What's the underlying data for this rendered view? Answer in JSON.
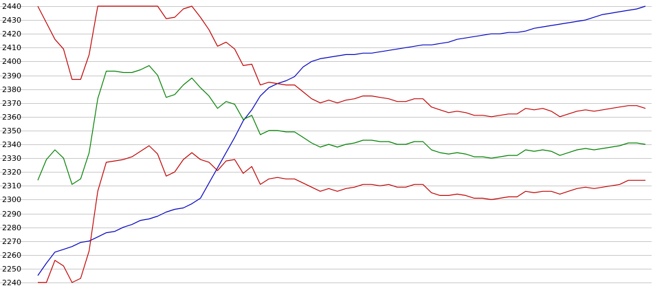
{
  "chart_data": {
    "type": "line",
    "title": "",
    "xlabel": "",
    "ylabel": "",
    "ylim": [
      2240,
      2440
    ],
    "y_ticks": [
      2240,
      2250,
      2260,
      2270,
      2280,
      2290,
      2300,
      2310,
      2320,
      2330,
      2340,
      2350,
      2360,
      2370,
      2380,
      2390,
      2400,
      2410,
      2420,
      2430,
      2440
    ],
    "grid": true,
    "x_count": 72,
    "series": [
      {
        "color": "#0000c0",
        "values": [
          2245,
          2254,
          2262,
          2264,
          2266,
          2269,
          2270,
          2273,
          2276,
          2277,
          2280,
          2282,
          2285,
          2286,
          2288,
          2291,
          2293,
          2294,
          2297,
          2301,
          2312,
          2323,
          2334,
          2345,
          2357,
          2365,
          2375,
          2381,
          2384,
          2386,
          2389,
          2396,
          2400,
          2402,
          2403,
          2404,
          2405,
          2405,
          2406,
          2406,
          2407,
          2408,
          2409,
          2410,
          2411,
          2412,
          2412,
          2413,
          2414,
          2416,
          2417,
          2418,
          2419,
          2420,
          2420,
          2421,
          2421,
          2422,
          2424,
          2425,
          2426,
          2427,
          2428,
          2429,
          2430,
          2432,
          2434,
          2435,
          2436,
          2437,
          2438,
          2440
        ]
      },
      {
        "color": "#c00000",
        "values": [
          2440,
          2428,
          2416,
          2409,
          2387,
          2387,
          2405,
          2440,
          2440,
          2440,
          2440,
          2440,
          2440,
          2440,
          2440,
          2431,
          2432,
          2438,
          2440,
          2432,
          2423,
          2411,
          2414,
          2409,
          2397,
          2398,
          2383,
          2385,
          2384,
          2383,
          2383,
          2378,
          2373,
          2370,
          2372,
          2370,
          2372,
          2373,
          2375,
          2375,
          2374,
          2373,
          2371,
          2371,
          2373,
          2373,
          2367,
          2365,
          2363,
          2364,
          2363,
          2361,
          2361,
          2360,
          2361,
          2362,
          2362,
          2366,
          2365,
          2366,
          2364,
          2360,
          2362,
          2364,
          2365,
          2364,
          2365,
          2366,
          2367,
          2368,
          2368,
          2366
        ]
      },
      {
        "color": "#008000",
        "values": [
          2314,
          2329,
          2336,
          2330,
          2311,
          2315,
          2334,
          2373,
          2393,
          2393,
          2392,
          2392,
          2394,
          2397,
          2390,
          2374,
          2376,
          2383,
          2388,
          2381,
          2375,
          2366,
          2371,
          2369,
          2358,
          2361,
          2347,
          2350,
          2350,
          2349,
          2349,
          2345,
          2341,
          2338,
          2340,
          2338,
          2340,
          2341,
          2343,
          2343,
          2342,
          2342,
          2340,
          2340,
          2342,
          2342,
          2336,
          2334,
          2333,
          2334,
          2333,
          2331,
          2331,
          2330,
          2331,
          2332,
          2332,
          2336,
          2335,
          2336,
          2335,
          2332,
          2334,
          2336,
          2337,
          2336,
          2337,
          2338,
          2339,
          2341,
          2341,
          2340
        ]
      },
      {
        "color": "#c00000",
        "values": [
          2240,
          2240,
          2256,
          2252,
          2240,
          2243,
          2263,
          2306,
          2327,
          2328,
          2329,
          2331,
          2335,
          2339,
          2333,
          2317,
          2320,
          2329,
          2334,
          2329,
          2327,
          2321,
          2328,
          2329,
          2319,
          2324,
          2311,
          2315,
          2316,
          2315,
          2315,
          2312,
          2309,
          2306,
          2308,
          2306,
          2308,
          2309,
          2311,
          2311,
          2310,
          2311,
          2309,
          2309,
          2311,
          2311,
          2305,
          2303,
          2303,
          2304,
          2303,
          2301,
          2301,
          2300,
          2301,
          2302,
          2302,
          2306,
          2305,
          2306,
          2306,
          2304,
          2306,
          2308,
          2309,
          2308,
          2309,
          2310,
          2311,
          2314,
          2314,
          2314
        ]
      }
    ]
  }
}
